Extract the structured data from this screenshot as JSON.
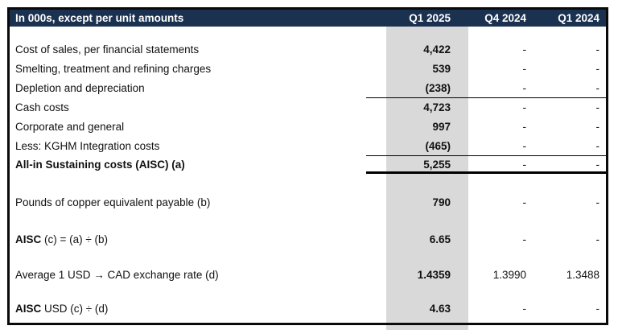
{
  "colors": {
    "header_bg": "#1b3150",
    "q1_column_bg": "#d9d9d9",
    "blue_dash": "#2d2d8c",
    "border": "#0a0a0a"
  },
  "table": {
    "header": {
      "label": "In 000s, except per unit amounts",
      "columns": [
        "Q1 2025",
        "Q4 2024",
        "Q1 2024"
      ]
    },
    "rows": [
      {
        "spacer": 17
      },
      {
        "label": "Cost of sales, per financial statements",
        "values": [
          "4,422",
          "-",
          "-"
        ]
      },
      {
        "label": "Smelting, treatment and refining charges",
        "values": [
          "539",
          "-",
          "-"
        ]
      },
      {
        "label": "Depletion and depreciation",
        "values": [
          "(238)",
          "-",
          "-"
        ],
        "rule": "thin"
      },
      {
        "label": "Cash costs",
        "values": [
          "4,723",
          "-",
          "-"
        ]
      },
      {
        "label": "Corporate and general",
        "values": [
          "997",
          "-",
          "-"
        ]
      },
      {
        "label": "Less: KGHM Integration costs",
        "values": [
          "(465)",
          "-",
          "-"
        ],
        "rule": "thin"
      },
      {
        "label_bold": "All-in Sustaining costs (AISC) (a)",
        "values": [
          "5,255",
          "-",
          "-"
        ],
        "rule": "thick",
        "height": 22
      },
      {
        "spacer": 24
      },
      {
        "label": "Pounds of copper equivalent payable (b)",
        "values": [
          "790",
          "-",
          "-"
        ]
      },
      {
        "spacer": 22
      },
      {
        "label_bold": "AISC",
        "label": " (c) = (a) ÷ (b)",
        "values": [
          "6.65",
          "-",
          "-"
        ]
      },
      {
        "spacer": 20
      },
      {
        "label": "Average 1 USD → CAD exchange rate (d)",
        "values": [
          "1.4359",
          "1.3990",
          "1.3488"
        ]
      },
      {
        "spacer": 18
      },
      {
        "label_bold": "AISC",
        "label": " USD (c) ÷ (d)",
        "values": [
          "4.63",
          "-",
          "-"
        ],
        "blue_dashes": true
      }
    ]
  }
}
